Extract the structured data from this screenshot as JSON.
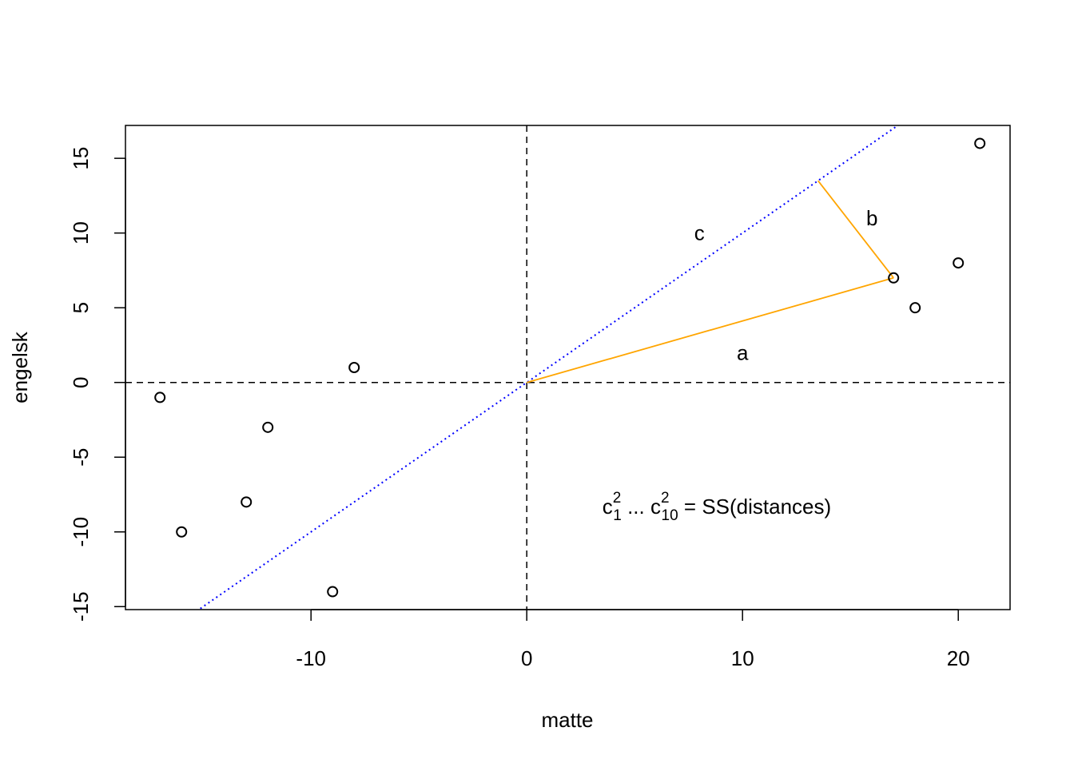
{
  "chart_data": {
    "type": "scatter",
    "title": "",
    "xlabel": "matte",
    "ylabel": "engelsk",
    "xlim": [
      -18.6,
      22.4
    ],
    "ylim": [
      -15.2,
      17.2
    ],
    "x_ticks": [
      -10,
      0,
      10,
      20
    ],
    "x_tick_labels": [
      "-10",
      "0",
      "10",
      "20"
    ],
    "y_ticks": [
      -15,
      -10,
      -5,
      0,
      5,
      10,
      15
    ],
    "y_tick_labels": [
      "-15",
      "-10",
      "-5",
      "0",
      "5",
      "10",
      "15"
    ],
    "grid": false,
    "points": [
      {
        "x": -17,
        "y": -1
      },
      {
        "x": -16,
        "y": -10
      },
      {
        "x": -13,
        "y": -8
      },
      {
        "x": -12,
        "y": -3
      },
      {
        "x": -9,
        "y": -14
      },
      {
        "x": -8,
        "y": 1
      },
      {
        "x": 17,
        "y": 7
      },
      {
        "x": 18,
        "y": 5
      },
      {
        "x": 20,
        "y": 8
      },
      {
        "x": 21,
        "y": 16
      }
    ],
    "reference_lines": [
      {
        "kind": "vertical",
        "x": 0,
        "style": "dashed",
        "color": "#000000"
      },
      {
        "kind": "horizontal",
        "y": 0,
        "style": "dashed",
        "color": "#000000"
      }
    ],
    "fit_line": {
      "intercept": 0,
      "slope": 1,
      "style": "dotted",
      "color": "#0000ff"
    },
    "segments": [
      {
        "name": "a",
        "from": [
          0,
          0
        ],
        "to": [
          17,
          7
        ],
        "color": "#ffa500"
      },
      {
        "name": "b",
        "from": [
          17,
          7
        ],
        "to": [
          13.5,
          13.5
        ],
        "color": "#ffa500"
      }
    ],
    "annotations": [
      {
        "text": "a",
        "x": 10,
        "y": 2
      },
      {
        "text": "b",
        "x": 16,
        "y": 11
      },
      {
        "text": "c",
        "x": 8,
        "y": 10
      }
    ],
    "formula": {
      "c1": "c",
      "sub1": "1",
      "sup1": "2",
      "dots": " ... ",
      "c2": "c",
      "sub2": "10",
      "sup2": "2",
      "rest": " = SS(distances)",
      "x": 3.5,
      "y": -8.3
    }
  }
}
